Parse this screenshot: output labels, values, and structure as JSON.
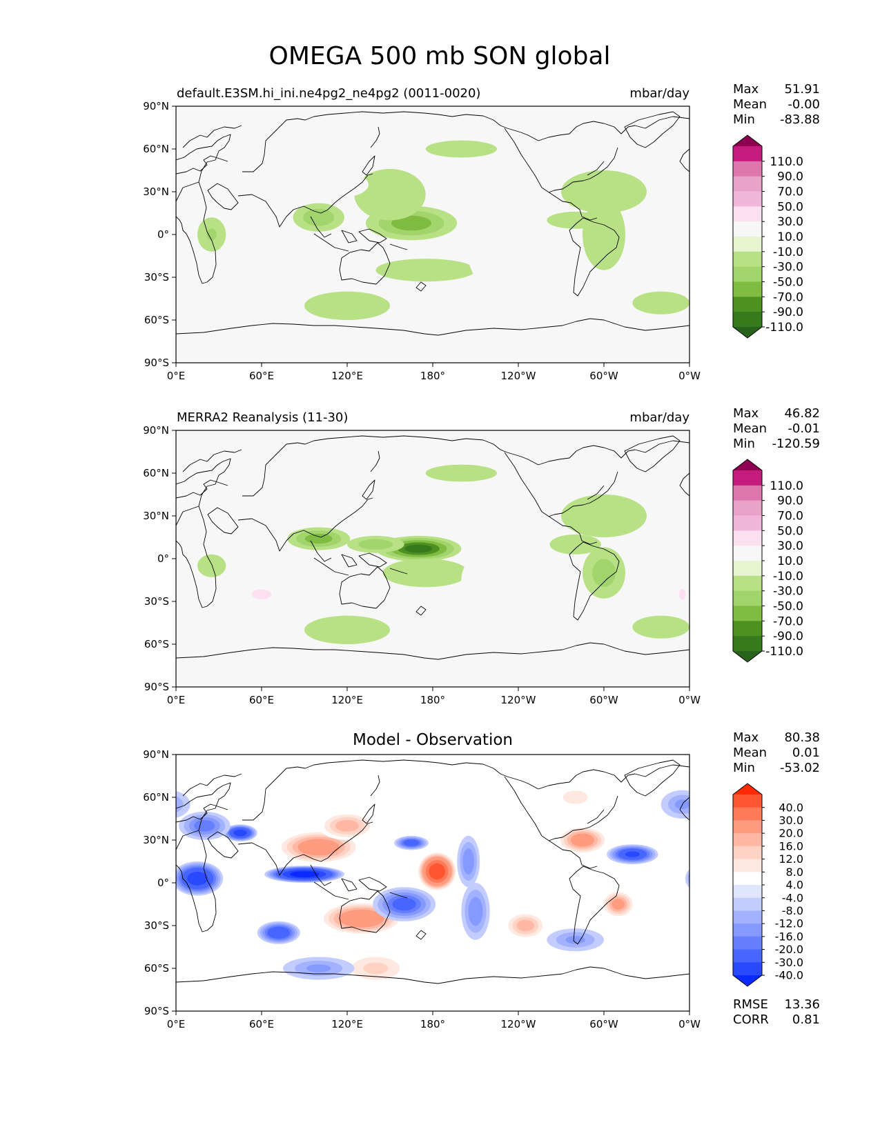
{
  "title": "OMEGA 500 mb SON global",
  "panels": [
    {
      "left_title": "default.E3SM.hi_ini.ne4pg2_ne4pg2 (0011-0020)",
      "center_title": "",
      "units": "mbar/day",
      "stats": [
        {
          "label": "Max",
          "value": "51.91"
        },
        {
          "label": "Mean",
          "value": "-0.00"
        },
        {
          "label": "Min",
          "value": "-83.88"
        }
      ]
    },
    {
      "left_title": "MERRA2 Reanalysis (11-30)",
      "center_title": "",
      "units": "mbar/day",
      "stats": [
        {
          "label": "Max",
          "value": "46.82"
        },
        {
          "label": "Mean",
          "value": "-0.01"
        },
        {
          "label": "Min",
          "value": "-120.59"
        }
      ]
    },
    {
      "left_title": "",
      "center_title": "Model - Observation",
      "units": "",
      "stats": [
        {
          "label": "Max",
          "value": "80.38"
        },
        {
          "label": "Mean",
          "value": "0.01"
        },
        {
          "label": "Min",
          "value": "-53.02"
        }
      ],
      "extra_stats": [
        {
          "label": "RMSE",
          "value": "13.36"
        },
        {
          "label": "CORR",
          "value": "0.81"
        }
      ]
    }
  ],
  "axes": {
    "x_ticks": [
      "0°E",
      "60°E",
      "120°E",
      "180°",
      "120°W",
      "60°W",
      "0°W"
    ],
    "y_ticks": [
      "90°N",
      "60°N",
      "30°N",
      "0°",
      "30°S",
      "60°S",
      "90°S"
    ]
  },
  "colorbars": {
    "field": {
      "labels": [
        "110.0",
        "90.0",
        "70.0",
        "50.0",
        "30.0",
        "10.0",
        "-10.0",
        "-30.0",
        "-50.0",
        "-70.0",
        "-90.0",
        "-110.0"
      ],
      "colors": [
        "#8e0152",
        "#c51b7d",
        "#de77ae",
        "#e9a3c9",
        "#f1b6da",
        "#fde0ef",
        "#f7f7f7",
        "#e6f5d0",
        "#b8e186",
        "#a1d46a",
        "#7fbc41",
        "#4d9221",
        "#357a1c",
        "#276419"
      ]
    },
    "diff": {
      "labels": [
        "40.0",
        "30.0",
        "20.0",
        "16.0",
        "12.0",
        "8.0",
        "4.0",
        "-4.0",
        "-8.0",
        "-12.0",
        "-16.0",
        "-20.0",
        "-30.0",
        "-40.0"
      ],
      "colors": [
        "#ff2a00",
        "#ff5533",
        "#ff7a59",
        "#ff9c80",
        "#ffb8a3",
        "#ffd2c4",
        "#ffe8e0",
        "#ffffff",
        "#e0e6ff",
        "#c2ccff",
        "#a3b2ff",
        "#8599ff",
        "#667fff",
        "#4766ff",
        "#2949ff",
        "#0a2aff"
      ]
    }
  },
  "chart_data": [
    {
      "type": "heatmap",
      "title": "default.E3SM.hi_ini.ne4pg2_ne4pg2 (0011-0020)",
      "units": "mbar/day",
      "xlim": [
        0,
        360
      ],
      "ylim": [
        -90,
        90
      ],
      "x_ticks": [
        "0°E",
        "60°E",
        "120°E",
        "180°",
        "120°W",
        "60°W",
        "0°W"
      ],
      "y_ticks": [
        "90°N",
        "60°N",
        "30°N",
        "0°",
        "30°S",
        "60°S",
        "90°S"
      ],
      "levels": [
        -110,
        -90,
        -70,
        -50,
        -30,
        -10,
        10,
        30,
        50,
        70,
        90,
        110
      ],
      "stats": {
        "max": 51.91,
        "mean": -0.0,
        "min": -83.88
      },
      "features": [
        {
          "lon": 165,
          "lat": 8,
          "value": -60,
          "rx": 32,
          "ry": 12
        },
        {
          "lon": 100,
          "lat": 12,
          "value": -45,
          "rx": 18,
          "ry": 10
        },
        {
          "lon": 150,
          "lat": 28,
          "value": -22,
          "rx": 25,
          "ry": 18
        },
        {
          "lon": 175,
          "lat": -25,
          "value": -25,
          "rx": 35,
          "ry": 8
        },
        {
          "lon": 300,
          "lat": 0,
          "value": -25,
          "rx": 15,
          "ry": 25
        },
        {
          "lon": 280,
          "lat": 10,
          "value": -20,
          "rx": 20,
          "ry": 6
        },
        {
          "lon": 25,
          "lat": 0,
          "value": -30,
          "rx": 10,
          "ry": 12
        },
        {
          "lon": 120,
          "lat": -50,
          "value": -15,
          "rx": 30,
          "ry": 10
        },
        {
          "lon": 340,
          "lat": -48,
          "value": -15,
          "rx": 20,
          "ry": 8
        },
        {
          "lon": 200,
          "lat": 60,
          "value": -12,
          "rx": 25,
          "ry": 6
        },
        {
          "lon": 300,
          "lat": 30,
          "value": -12,
          "rx": 30,
          "ry": 15
        },
        {
          "lon": 75,
          "lat": -15,
          "value": 28,
          "rx": 30,
          "ry": 8
        },
        {
          "lon": 50,
          "lat": 25,
          "value": 26,
          "rx": 25,
          "ry": 10
        },
        {
          "lon": 20,
          "lat": 22,
          "value": 18,
          "rx": 18,
          "ry": 8
        },
        {
          "lon": 350,
          "lat": 5,
          "value": 18,
          "rx": 12,
          "ry": 15
        },
        {
          "lon": 230,
          "lat": -15,
          "value": 15,
          "rx": 25,
          "ry": 25
        },
        {
          "lon": 240,
          "lat": 30,
          "value": 12,
          "rx": 20,
          "ry": 10
        },
        {
          "lon": 110,
          "lat": 35,
          "value": 15,
          "rx": 25,
          "ry": 10
        }
      ]
    },
    {
      "type": "heatmap",
      "title": "MERRA2 Reanalysis (11-30)",
      "units": "mbar/day",
      "xlim": [
        0,
        360
      ],
      "ylim": [
        -90,
        90
      ],
      "x_ticks": [
        "0°E",
        "60°E",
        "120°E",
        "180°",
        "120°W",
        "60°W",
        "0°W"
      ],
      "y_ticks": [
        "90°N",
        "60°N",
        "30°N",
        "0°",
        "30°S",
        "60°S",
        "90°S"
      ],
      "levels": [
        -110,
        -90,
        -70,
        -50,
        -30,
        -10,
        10,
        30,
        50,
        70,
        90,
        110
      ],
      "stats": {
        "max": 46.82,
        "mean": -0.01,
        "min": -120.59
      },
      "features": [
        {
          "lon": 170,
          "lat": 7,
          "value": -95,
          "rx": 30,
          "ry": 9
        },
        {
          "lon": 100,
          "lat": 14,
          "value": -60,
          "rx": 22,
          "ry": 8
        },
        {
          "lon": 140,
          "lat": 10,
          "value": -45,
          "rx": 20,
          "ry": 6
        },
        {
          "lon": 175,
          "lat": -10,
          "value": -25,
          "rx": 30,
          "ry": 10
        },
        {
          "lon": 300,
          "lat": -10,
          "value": -40,
          "rx": 15,
          "ry": 18
        },
        {
          "lon": 280,
          "lat": 10,
          "value": -28,
          "rx": 18,
          "ry": 7
        },
        {
          "lon": 25,
          "lat": -5,
          "value": -28,
          "rx": 10,
          "ry": 8
        },
        {
          "lon": 120,
          "lat": -50,
          "value": -15,
          "rx": 30,
          "ry": 10
        },
        {
          "lon": 340,
          "lat": -48,
          "value": -15,
          "rx": 20,
          "ry": 8
        },
        {
          "lon": 200,
          "lat": 60,
          "value": -12,
          "rx": 25,
          "ry": 6
        },
        {
          "lon": 300,
          "lat": 30,
          "value": -12,
          "rx": 30,
          "ry": 15
        },
        {
          "lon": 60,
          "lat": -25,
          "value": 30,
          "rx": 20,
          "ry": 10
        },
        {
          "lon": 40,
          "lat": 30,
          "value": 28,
          "rx": 25,
          "ry": 10
        },
        {
          "lon": 20,
          "lat": 22,
          "value": 18,
          "rx": 18,
          "ry": 8
        },
        {
          "lon": 355,
          "lat": -25,
          "value": 35,
          "rx": 5,
          "ry": 8
        },
        {
          "lon": 230,
          "lat": -15,
          "value": 15,
          "rx": 30,
          "ry": 25
        },
        {
          "lon": 345,
          "lat": 10,
          "value": 15,
          "rx": 15,
          "ry": 20
        },
        {
          "lon": 110,
          "lat": -75,
          "value": 12,
          "rx": 40,
          "ry": 8
        }
      ]
    },
    {
      "type": "heatmap",
      "title": "Model - Observation",
      "units": "",
      "xlim": [
        0,
        360
      ],
      "ylim": [
        -90,
        90
      ],
      "x_ticks": [
        "0°E",
        "60°E",
        "120°E",
        "180°",
        "120°W",
        "60°W",
        "0°W"
      ],
      "y_ticks": [
        "90°N",
        "60°N",
        "30°N",
        "0°",
        "30°S",
        "60°S",
        "90°S"
      ],
      "levels": [
        -40,
        -30,
        -20,
        -16,
        -12,
        -8,
        -4,
        4,
        8,
        12,
        16,
        20,
        30,
        40
      ],
      "stats": {
        "max": 80.38,
        "mean": 0.01,
        "min": -53.02,
        "rmse": 13.36,
        "corr": 0.81
      },
      "features": [
        {
          "lon": 183,
          "lat": 8,
          "value": 48,
          "rx": 14,
          "ry": 14
        },
        {
          "lon": 90,
          "lat": 6,
          "value": -45,
          "rx": 28,
          "ry": 6
        },
        {
          "lon": 15,
          "lat": 3,
          "value": -35,
          "rx": 18,
          "ry": 12
        },
        {
          "lon": 45,
          "lat": 35,
          "value": -35,
          "rx": 12,
          "ry": 6
        },
        {
          "lon": 130,
          "lat": -25,
          "value": 28,
          "rx": 30,
          "ry": 12
        },
        {
          "lon": 100,
          "lat": 25,
          "value": 26,
          "rx": 30,
          "ry": 12
        },
        {
          "lon": 120,
          "lat": 40,
          "value": 18,
          "rx": 20,
          "ry": 10
        },
        {
          "lon": 160,
          "lat": -15,
          "value": -22,
          "rx": 22,
          "ry": 12
        },
        {
          "lon": 72,
          "lat": -35,
          "value": -28,
          "rx": 15,
          "ry": 8
        },
        {
          "lon": 165,
          "lat": 28,
          "value": -25,
          "rx": 12,
          "ry": 5
        },
        {
          "lon": 285,
          "lat": 30,
          "value": 25,
          "rx": 18,
          "ry": 10
        },
        {
          "lon": 320,
          "lat": 20,
          "value": -30,
          "rx": 18,
          "ry": 7
        },
        {
          "lon": 310,
          "lat": -15,
          "value": 22,
          "rx": 12,
          "ry": 10
        },
        {
          "lon": 245,
          "lat": -30,
          "value": 18,
          "rx": 15,
          "ry": 10
        },
        {
          "lon": 210,
          "lat": -20,
          "value": -15,
          "rx": 10,
          "ry": 20
        },
        {
          "lon": 205,
          "lat": 15,
          "value": -15,
          "rx": 8,
          "ry": 18
        },
        {
          "lon": 20,
          "lat": 40,
          "value": -18,
          "rx": 18,
          "ry": 10
        },
        {
          "lon": 355,
          "lat": 55,
          "value": -12,
          "rx": 15,
          "ry": 10
        },
        {
          "lon": 140,
          "lat": -60,
          "value": 12,
          "rx": 25,
          "ry": 12
        },
        {
          "lon": 280,
          "lat": -40,
          "value": -12,
          "rx": 20,
          "ry": 8
        },
        {
          "lon": 280,
          "lat": 60,
          "value": 10,
          "rx": 15,
          "ry": 8
        },
        {
          "lon": 100,
          "lat": -60,
          "value": -12,
          "rx": 25,
          "ry": 8
        }
      ]
    }
  ]
}
